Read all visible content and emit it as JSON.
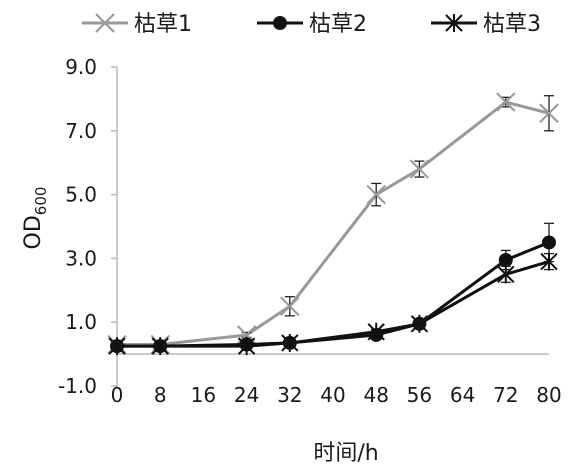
{
  "chart_data": {
    "type": "line",
    "title": "",
    "xlabel": "时间/h",
    "ylabel": "OD",
    "ylabel_sub": "600",
    "x": [
      0,
      8,
      24,
      32,
      48,
      56,
      72,
      80
    ],
    "xticks": [
      "0",
      "8",
      "16",
      "24",
      "32",
      "40",
      "48",
      "56",
      "64",
      "72",
      "80"
    ],
    "yticks": [
      "-1.0",
      "1.0",
      "3.0",
      "5.0",
      "7.0",
      "9.0"
    ],
    "xlim": [
      0,
      80
    ],
    "ylim": [
      -1.0,
      9.0
    ],
    "grid": false,
    "legend_position": "top",
    "series": [
      {
        "name": "枯草1",
        "color": "#999999",
        "marker": "x-cross",
        "values": [
          0.3,
          0.3,
          0.6,
          1.5,
          5.0,
          5.8,
          7.9,
          7.55
        ],
        "errors": [
          0.05,
          0.05,
          0.08,
          0.3,
          0.35,
          0.25,
          0.15,
          0.55
        ]
      },
      {
        "name": "枯草2",
        "color": "#111111",
        "marker": "circle",
        "values": [
          0.25,
          0.25,
          0.3,
          0.35,
          0.6,
          0.95,
          2.95,
          3.5
        ],
        "errors": [
          0.05,
          0.05,
          0.05,
          0.05,
          0.08,
          0.1,
          0.3,
          0.6
        ]
      },
      {
        "name": "枯草3",
        "color": "#111111",
        "marker": "asterisk",
        "values": [
          0.25,
          0.25,
          0.25,
          0.35,
          0.7,
          0.95,
          2.5,
          2.9
        ],
        "errors": [
          0.05,
          0.05,
          0.05,
          0.05,
          0.08,
          0.1,
          0.25,
          0.25
        ]
      }
    ]
  }
}
